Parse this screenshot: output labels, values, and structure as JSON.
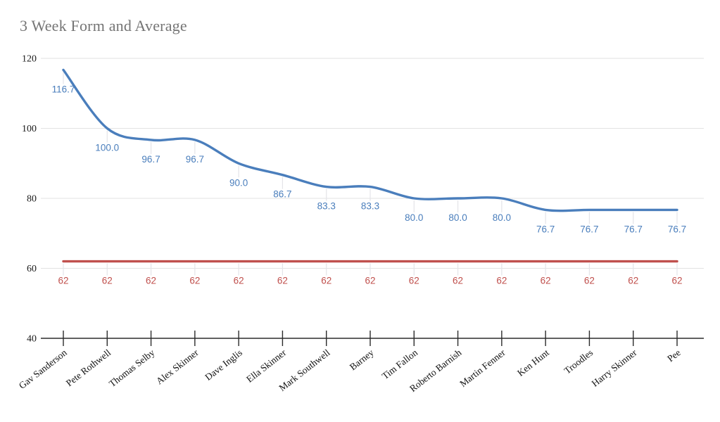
{
  "title": {
    "text": "3 Week Form and Average"
  },
  "chart_data": {
    "type": "line",
    "smooth": true,
    "title": "3 Week Form and Average",
    "categories": [
      "Gav Sanderson",
      "Pete Rothwell",
      "Thomas Selby",
      "Alex Skinner",
      "Dave Inglis",
      "Ella Skinner",
      "Mark Southwell",
      "Barney",
      "Tim Fallon",
      "Roberto Barnish",
      "Martin Fenner",
      "Ken Hunt",
      "Troodles",
      "Harry Skinner",
      "Pee"
    ],
    "series": [
      {
        "id": "form",
        "color": "#4a7ebc",
        "values": [
          116.7,
          100.0,
          96.7,
          96.7,
          90.0,
          86.7,
          83.3,
          83.3,
          80.0,
          80.0,
          80.0,
          76.7,
          76.7,
          76.7,
          76.7
        ],
        "point_labels": [
          "116.7",
          "100.0",
          "96.7",
          "96.7",
          "90.0",
          "86.7",
          "83.3",
          "83.3",
          "80.0",
          "80.0",
          "80.0",
          "76.7",
          "76.7",
          "76.7",
          "76.7"
        ]
      },
      {
        "id": "average",
        "color": "#c0504d",
        "values": [
          62,
          62,
          62,
          62,
          62,
          62,
          62,
          62,
          62,
          62,
          62,
          62,
          62,
          62,
          62
        ],
        "point_labels": [
          "62",
          "62",
          "62",
          "62",
          "62",
          "62",
          "62",
          "62",
          "62",
          "62",
          "62",
          "62",
          "62",
          "62",
          "62"
        ]
      }
    ],
    "ylim": [
      40,
      120
    ],
    "yticks": [
      120,
      100,
      80,
      60,
      40
    ],
    "grid": "horizontal",
    "legend": "none"
  },
  "colors": {
    "title": "#757575",
    "gridline": "#e2e2e2",
    "annotation_stem": "#e4e4e8",
    "axis": "#2b2b2b",
    "tick_text": "#1a1a1a",
    "background": "#ffffff"
  }
}
